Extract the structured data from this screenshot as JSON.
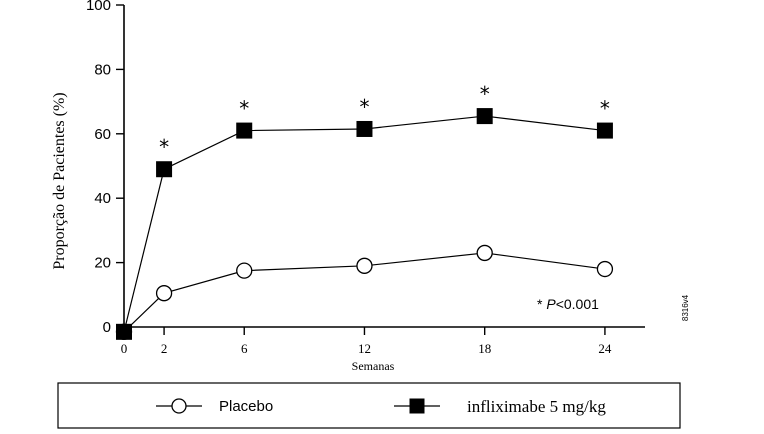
{
  "chart_data": {
    "type": "line",
    "xlabel": "Semanas",
    "ylabel": "Proporção de Pacientes (%)",
    "xticks": [
      0,
      2,
      6,
      12,
      18,
      24
    ],
    "yticks": [
      0,
      20,
      40,
      60,
      80,
      100
    ],
    "xlim": [
      0,
      26
    ],
    "ylim": [
      0,
      100
    ],
    "series": [
      {
        "name": "Placebo",
        "marker": "open-circle",
        "x": [
          0,
          2,
          6,
          12,
          18,
          24
        ],
        "y": [
          -1.5,
          10.5,
          17.5,
          19,
          23,
          18
        ]
      },
      {
        "name": "infliximabe 5 mg/kg",
        "marker": "filled-square",
        "x": [
          0,
          2,
          6,
          12,
          18,
          24
        ],
        "y": [
          -1.5,
          49,
          61,
          61.5,
          65.5,
          61
        ]
      }
    ],
    "significance_marks": {
      "symbol": "*",
      "x": [
        2,
        6,
        12,
        18,
        24
      ]
    },
    "annotation": {
      "prefix": "* ",
      "p_italic": "P",
      "rest": "<0.001"
    },
    "figure_code": "8316v4",
    "colors": {
      "lines": "#000000",
      "background": "#ffffff"
    }
  }
}
